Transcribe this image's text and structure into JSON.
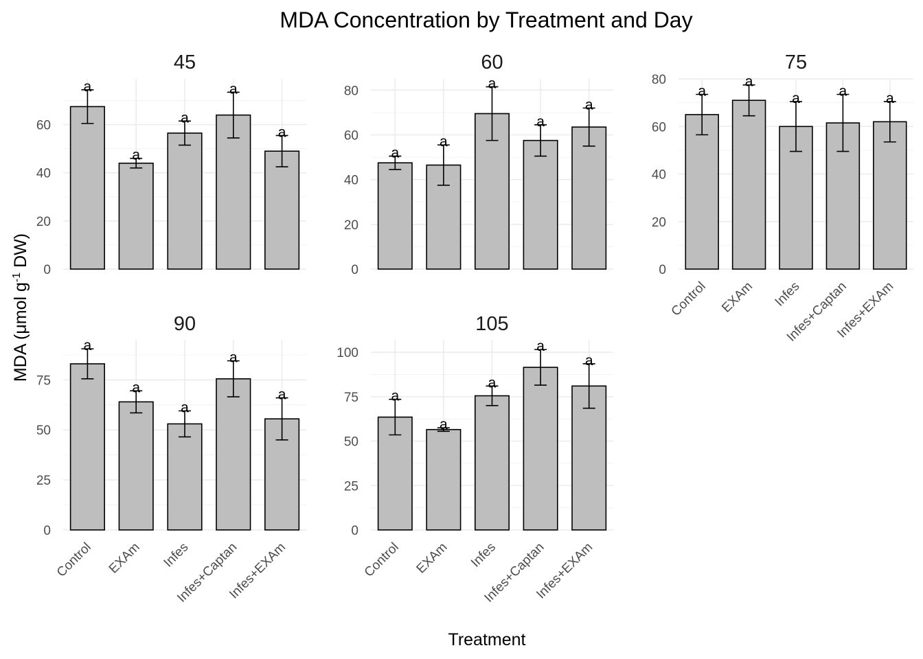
{
  "chart_data": {
    "type": "bar",
    "title": "MDA Concentration by Treatment and Day",
    "xlabel": "Treatment",
    "ylabel": "MDA (μmol g⁻¹ DW)",
    "ylabel_parts": {
      "pre": "MDA (μmol g",
      "sup": "-1",
      "post": " DW)"
    },
    "categories": [
      "Control",
      "EXAm",
      "Infes",
      "Infes+Captan",
      "Infes+EXAm"
    ],
    "panels": [
      {
        "name": "45",
        "ylim": [
          0,
          79
        ],
        "yticks": [
          0,
          20,
          40,
          60
        ],
        "values": [
          67.5,
          44,
          56.5,
          64,
          49
        ],
        "errors": [
          7,
          2,
          5,
          9.5,
          6.5
        ],
        "labels": [
          "a",
          "a",
          "a",
          "a",
          "a"
        ]
      },
      {
        "name": "60",
        "ylim": [
          0,
          85
        ],
        "yticks": [
          0,
          20,
          40,
          60,
          80
        ],
        "values": [
          47.5,
          46.5,
          69.5,
          57.5,
          63.5
        ],
        "errors": [
          3,
          9,
          12,
          7,
          8.5
        ],
        "labels": [
          "a",
          "a",
          "a",
          "a",
          "a"
        ]
      },
      {
        "name": "75",
        "ylim": [
          0,
          80
        ],
        "yticks": [
          0,
          20,
          40,
          60,
          80
        ],
        "values": [
          65,
          71,
          60,
          61.5,
          62
        ],
        "errors": [
          8.5,
          6.5,
          10.5,
          12,
          8.5
        ],
        "labels": [
          "a",
          "a",
          "a",
          "a",
          "a"
        ]
      },
      {
        "name": "90",
        "ylim": [
          0,
          95
        ],
        "yticks": [
          0,
          25,
          50,
          75
        ],
        "values": [
          83,
          64,
          53,
          75.5,
          55.5
        ],
        "errors": [
          7.5,
          5.5,
          6.5,
          9,
          10.5
        ],
        "labels": [
          "a",
          "a",
          "a",
          "a",
          "a"
        ]
      },
      {
        "name": "105",
        "ylim": [
          0,
          107
        ],
        "yticks": [
          0,
          25,
          50,
          75,
          100
        ],
        "values": [
          63.5,
          56.5,
          75.5,
          91.5,
          81
        ],
        "errors": [
          10,
          1,
          5.5,
          10,
          12.5
        ],
        "labels": [
          "a",
          "a",
          "a",
          "a",
          "a"
        ]
      }
    ]
  }
}
